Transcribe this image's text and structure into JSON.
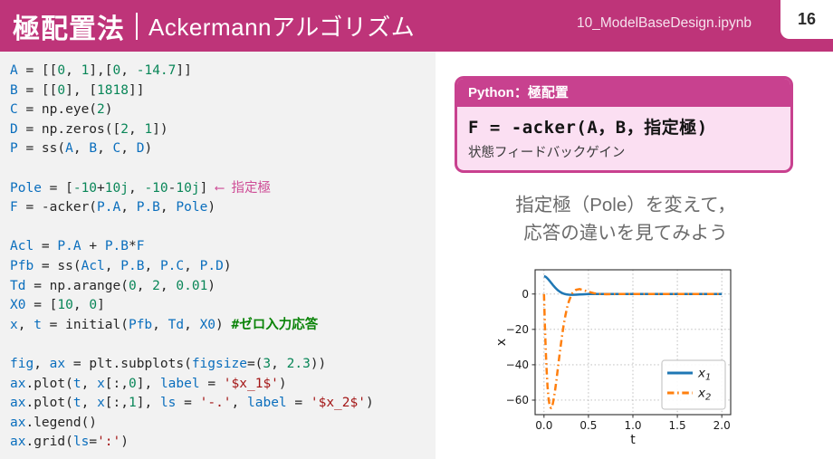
{
  "header": {
    "title_main": "極配置法",
    "title_sub": "Ackermannアルゴリズム",
    "notebook": "10_ModelBaseDesign.ipynb",
    "page_number": "16"
  },
  "code": {
    "lines": [
      [
        [
          "v",
          "A"
        ],
        [
          "p",
          " = [["
        ],
        [
          "n",
          "0"
        ],
        [
          "p",
          ", "
        ],
        [
          "n",
          "1"
        ],
        [
          "p",
          "],["
        ],
        [
          "n",
          "0"
        ],
        [
          "p",
          ", "
        ],
        [
          "n",
          "-14.7"
        ],
        [
          "p",
          "]]"
        ]
      ],
      [
        [
          "v",
          "B"
        ],
        [
          "p",
          " = [["
        ],
        [
          "n",
          "0"
        ],
        [
          "p",
          "], ["
        ],
        [
          "n",
          "1818"
        ],
        [
          "p",
          "]]"
        ]
      ],
      [
        [
          "v",
          "C"
        ],
        [
          "p",
          " = np.eye("
        ],
        [
          "n",
          "2"
        ],
        [
          "p",
          ")"
        ]
      ],
      [
        [
          "v",
          "D"
        ],
        [
          "p",
          " = np.zeros(["
        ],
        [
          "n",
          "2"
        ],
        [
          "p",
          ", "
        ],
        [
          "n",
          "1"
        ],
        [
          "p",
          "])"
        ]
      ],
      [
        [
          "v",
          "P"
        ],
        [
          "p",
          " = ss("
        ],
        [
          "v",
          "A"
        ],
        [
          "p",
          ", "
        ],
        [
          "v",
          "B"
        ],
        [
          "p",
          ", "
        ],
        [
          "v",
          "C"
        ],
        [
          "p",
          ", "
        ],
        [
          "v",
          "D"
        ],
        [
          "p",
          ")"
        ]
      ],
      [],
      [
        [
          "v",
          "Pole"
        ],
        [
          "p",
          " = ["
        ],
        [
          "n",
          "-10"
        ],
        [
          "p",
          "+"
        ],
        [
          "n",
          "10j"
        ],
        [
          "p",
          ", "
        ],
        [
          "n",
          "-10"
        ],
        [
          "p",
          "-"
        ],
        [
          "n",
          "10j"
        ],
        [
          "p",
          "] "
        ],
        [
          "a",
          "⟵ 指定極"
        ]
      ],
      [
        [
          "v",
          "F"
        ],
        [
          "p",
          " = -acker("
        ],
        [
          "v",
          "P.A"
        ],
        [
          "p",
          ", "
        ],
        [
          "v",
          "P.B"
        ],
        [
          "p",
          ", "
        ],
        [
          "v",
          "Pole"
        ],
        [
          "p",
          ")"
        ]
      ],
      [],
      [
        [
          "v",
          "Acl"
        ],
        [
          "p",
          " = "
        ],
        [
          "v",
          "P.A"
        ],
        [
          "p",
          " + "
        ],
        [
          "v",
          "P.B"
        ],
        [
          "p",
          "*"
        ],
        [
          "v",
          "F"
        ]
      ],
      [
        [
          "v",
          "Pfb"
        ],
        [
          "p",
          " = ss("
        ],
        [
          "v",
          "Acl"
        ],
        [
          "p",
          ", "
        ],
        [
          "v",
          "P.B"
        ],
        [
          "p",
          ", "
        ],
        [
          "v",
          "P.C"
        ],
        [
          "p",
          ", "
        ],
        [
          "v",
          "P.D"
        ],
        [
          "p",
          ")"
        ]
      ],
      [
        [
          "v",
          "Td"
        ],
        [
          "p",
          " = np.arange("
        ],
        [
          "n",
          "0"
        ],
        [
          "p",
          ", "
        ],
        [
          "n",
          "2"
        ],
        [
          "p",
          ", "
        ],
        [
          "n",
          "0.01"
        ],
        [
          "p",
          ")"
        ]
      ],
      [
        [
          "v",
          "X0"
        ],
        [
          "p",
          " = ["
        ],
        [
          "n",
          "10"
        ],
        [
          "p",
          ", "
        ],
        [
          "n",
          "0"
        ],
        [
          "p",
          "]"
        ]
      ],
      [
        [
          "v",
          "x"
        ],
        [
          "p",
          ", "
        ],
        [
          "v",
          "t"
        ],
        [
          "p",
          " = initial("
        ],
        [
          "v",
          "Pfb"
        ],
        [
          "p",
          ", "
        ],
        [
          "v",
          "Td"
        ],
        [
          "p",
          ", "
        ],
        [
          "v",
          "X0"
        ],
        [
          "p",
          ") "
        ],
        [
          "c",
          "#ゼロ入力応答"
        ]
      ],
      [],
      [
        [
          "v",
          "fig"
        ],
        [
          "p",
          ", "
        ],
        [
          "v",
          "ax"
        ],
        [
          "p",
          " = plt.subplots("
        ],
        [
          "v",
          "figsize"
        ],
        [
          "p",
          "=("
        ],
        [
          "n",
          "3"
        ],
        [
          "p",
          ", "
        ],
        [
          "n",
          "2.3"
        ],
        [
          "p",
          "))"
        ]
      ],
      [
        [
          "v",
          "ax"
        ],
        [
          "p",
          ".plot("
        ],
        [
          "v",
          "t"
        ],
        [
          "p",
          ", "
        ],
        [
          "v",
          "x"
        ],
        [
          "p",
          "[:,"
        ],
        [
          "n",
          "0"
        ],
        [
          "p",
          "], "
        ],
        [
          "v",
          "label"
        ],
        [
          "p",
          " = "
        ],
        [
          "s",
          "'$x_1$'"
        ],
        [
          "p",
          ")"
        ]
      ],
      [
        [
          "v",
          "ax"
        ],
        [
          "p",
          ".plot("
        ],
        [
          "v",
          "t"
        ],
        [
          "p",
          ", "
        ],
        [
          "v",
          "x"
        ],
        [
          "p",
          "[:,"
        ],
        [
          "n",
          "1"
        ],
        [
          "p",
          "], "
        ],
        [
          "v",
          "ls"
        ],
        [
          "p",
          " = "
        ],
        [
          "s",
          "'-.'"
        ],
        [
          "p",
          ", "
        ],
        [
          "v",
          "label"
        ],
        [
          "p",
          " = "
        ],
        [
          "s",
          "'$x_2$'"
        ],
        [
          "p",
          ")"
        ]
      ],
      [
        [
          "v",
          "ax"
        ],
        [
          "p",
          ".legend()"
        ]
      ],
      [
        [
          "v",
          "ax"
        ],
        [
          "p",
          ".grid("
        ],
        [
          "v",
          "ls"
        ],
        [
          "p",
          "="
        ],
        [
          "s",
          "':'"
        ],
        [
          "p",
          ")"
        ]
      ]
    ]
  },
  "callout": {
    "header": "Python：極配置",
    "code": "F = -acker(A，B，指定極)",
    "caption": "状態フィードバックゲイン"
  },
  "note": {
    "line1": "指定極（Pole）を変えて，",
    "line2": "応答の違いを見てみよう"
  },
  "colors": {
    "header_magenta": "#be3479",
    "callout_magenta": "#c8418f",
    "annotation_pink": "#ce4c96",
    "code_bg": "#f2f2f2",
    "series_blue": "#1f77b4",
    "series_orange": "#ff7f0e"
  },
  "chart_data": {
    "type": "line",
    "title": "",
    "xlabel": "t",
    "ylabel": "x",
    "xlim": [
      -0.1,
      2.1
    ],
    "ylim": [
      -68.2,
      13.7
    ],
    "xtick_values": [
      0.0,
      0.5,
      1.0,
      1.5,
      2.0
    ],
    "xtick_labels": [
      "0.0",
      "0.5",
      "1.0",
      "1.5",
      "2.0"
    ],
    "ytick_values": [
      0,
      -20,
      -40,
      -60
    ],
    "ytick_labels": [
      "0",
      "−20",
      "−40",
      "−60"
    ],
    "grid": "dotted",
    "legend_position": "lower right",
    "x": [
      0,
      0.01,
      0.02,
      0.03,
      0.04,
      0.05,
      0.06,
      0.07,
      0.08,
      0.09,
      0.1,
      0.12,
      0.14,
      0.16,
      0.18,
      0.2,
      0.22,
      0.24,
      0.26,
      0.28,
      0.3,
      0.32,
      0.36,
      0.4,
      0.44,
      0.48,
      0.52,
      0.56,
      0.6,
      0.7,
      0.8,
      1.0,
      1.2,
      1.4,
      1.6,
      1.8,
      2.0
    ],
    "series": [
      {
        "name": "x_1",
        "color": "#1f77b4",
        "style": "solid",
        "values": [
          10,
          9.91,
          9.65,
          9.27,
          8.78,
          8.23,
          7.63,
          7.0,
          6.35,
          5.71,
          5.08,
          3.9,
          2.85,
          1.96,
          1.23,
          0.67,
          0.24,
          -0.06,
          -0.25,
          -0.37,
          -0.42,
          -0.43,
          -0.37,
          -0.26,
          -0.15,
          -0.07,
          -0.02,
          0.01,
          0.02,
          0.01,
          0,
          0,
          0,
          0,
          0,
          0,
          0
        ]
      },
      {
        "name": "x_2",
        "color": "#ff7f0e",
        "style": "dashdot",
        "values": [
          0,
          -18.1,
          -32.5,
          -43.8,
          -52.2,
          -58.2,
          -62.0,
          -64.0,
          -64.5,
          -63.7,
          -61.9,
          -56.1,
          -48.6,
          -40.4,
          -32.2,
          -24.6,
          -17.9,
          -12.3,
          -7.7,
          -4.1,
          -1.4,
          0.5,
          2.4,
          2.8,
          2.3,
          1.6,
          1.0,
          0.5,
          0.1,
          -0.1,
          0,
          0,
          0,
          0,
          0,
          0,
          0
        ]
      }
    ]
  }
}
